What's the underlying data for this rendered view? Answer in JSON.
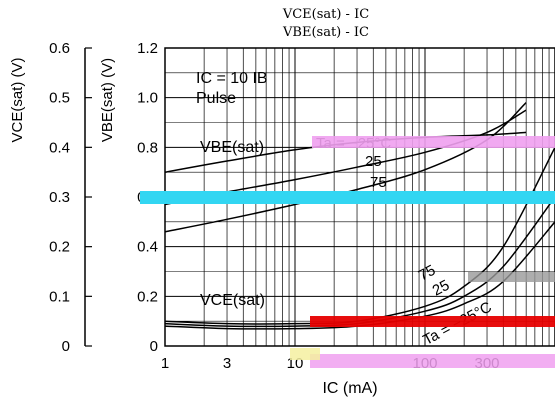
{
  "chart_data": {
    "type": "line",
    "title_lines": [
      "VCE(sat) - IC",
      "VBE(sat) - IC"
    ],
    "condition_label": "IC = 10 IB",
    "condition_sub": "Pulse",
    "x_axis": {
      "label": "IC (mA)",
      "scale": "log",
      "range": [
        1,
        1000
      ],
      "ticks": [
        1,
        3,
        10,
        30,
        100,
        300,
        1000
      ],
      "tick_labels": [
        "1",
        "3",
        "10",
        "",
        "100",
        "300",
        ""
      ]
    },
    "y_axis_left": {
      "label": "VCE(sat) (V)",
      "range": [
        0,
        0.6
      ],
      "ticks": [
        0,
        0.1,
        0.2,
        0.3,
        0.4,
        0.5,
        0.6
      ],
      "tick_labels": [
        "0",
        "0.1",
        "0.2",
        "0.3",
        "0.4",
        "0.5",
        "0.6"
      ]
    },
    "y_axis_right": {
      "label": "VBE(sat) (V)",
      "range": [
        0,
        1.2
      ],
      "ticks": [
        0,
        0.2,
        0.4,
        0.6,
        0.8,
        1.0,
        1.2
      ],
      "tick_labels": [
        "0",
        "0.2",
        "0.4",
        "0.6",
        "0.8",
        "1.0",
        "1.2"
      ]
    },
    "group_labels": {
      "vbe": "VBE(sat)",
      "vce": "VCE(sat)"
    },
    "series": [
      {
        "group": "VBE",
        "name": "Ta = −25°C",
        "x": [
          1,
          3,
          10,
          30,
          100,
          300,
          600
        ],
        "y": [
          0.7,
          0.745,
          0.79,
          0.82,
          0.84,
          0.85,
          0.86
        ]
      },
      {
        "group": "VBE",
        "name": "25",
        "x": [
          1,
          3,
          10,
          30,
          100,
          300,
          600
        ],
        "y": [
          0.57,
          0.62,
          0.67,
          0.72,
          0.78,
          0.86,
          0.95
        ]
      },
      {
        "group": "VBE",
        "name": "75",
        "x": [
          1,
          3,
          10,
          30,
          100,
          300,
          600
        ],
        "y": [
          0.46,
          0.51,
          0.57,
          0.63,
          0.71,
          0.83,
          0.98
        ]
      },
      {
        "group": "VCE",
        "name": "75",
        "x": [
          1,
          3,
          10,
          30,
          100,
          200,
          400,
          1000
        ],
        "y": [
          0.05,
          0.045,
          0.045,
          0.05,
          0.08,
          0.12,
          0.2,
          0.4
        ]
      },
      {
        "group": "VCE",
        "name": "25",
        "x": [
          1,
          3,
          10,
          30,
          100,
          200,
          400,
          1000
        ],
        "y": [
          0.045,
          0.04,
          0.04,
          0.045,
          0.07,
          0.1,
          0.16,
          0.3
        ]
      },
      {
        "group": "VCE",
        "name": "Ta = −25°C",
        "x": [
          1,
          3,
          10,
          30,
          100,
          200,
          400,
          1000
        ],
        "y": [
          0.04,
          0.035,
          0.035,
          0.04,
          0.06,
          0.085,
          0.13,
          0.25
        ]
      }
    ],
    "curve_labels": {
      "vbe_m25": "Ta = −25°C",
      "vbe_25": "25",
      "vbe_75": "75",
      "vce_75": "75",
      "vce_25": "25",
      "vce_m25": "Ta = −25°C"
    },
    "grid": true,
    "colors": {
      "axis": "#000000",
      "grid": "#000000",
      "curve": "#000000"
    }
  }
}
